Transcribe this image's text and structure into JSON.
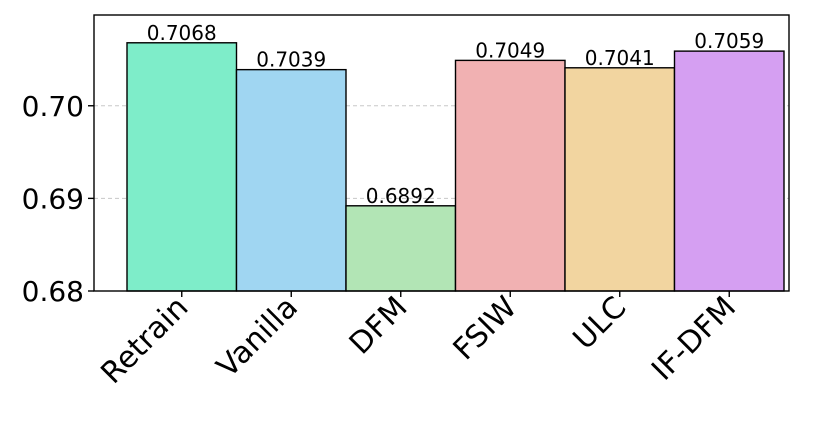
{
  "chart_data": {
    "type": "bar",
    "categories": [
      "Retrain",
      "Vanilla",
      "DFM",
      "FSIW",
      "ULC",
      "IF-DFM"
    ],
    "values": [
      0.7068,
      0.7039,
      0.6892,
      0.7049,
      0.7041,
      0.7059
    ],
    "value_labels": [
      "0.7068",
      "0.7039",
      "0.6892",
      "0.7049",
      "0.7041",
      "0.7059"
    ],
    "colors": [
      "#7eedc9",
      "#a0d6f2",
      "#b2e5b5",
      "#f1b1b2",
      "#f2d5a0",
      "#d59ff2"
    ],
    "title": "",
    "xlabel": "",
    "ylabel": "",
    "ylim": [
      0.68,
      0.7098
    ],
    "yticks": [
      0.68,
      0.69,
      0.7
    ],
    "ytick_labels": [
      "0.68",
      "0.69",
      "0.70"
    ],
    "grid": "y-dashed",
    "legend": "none"
  }
}
